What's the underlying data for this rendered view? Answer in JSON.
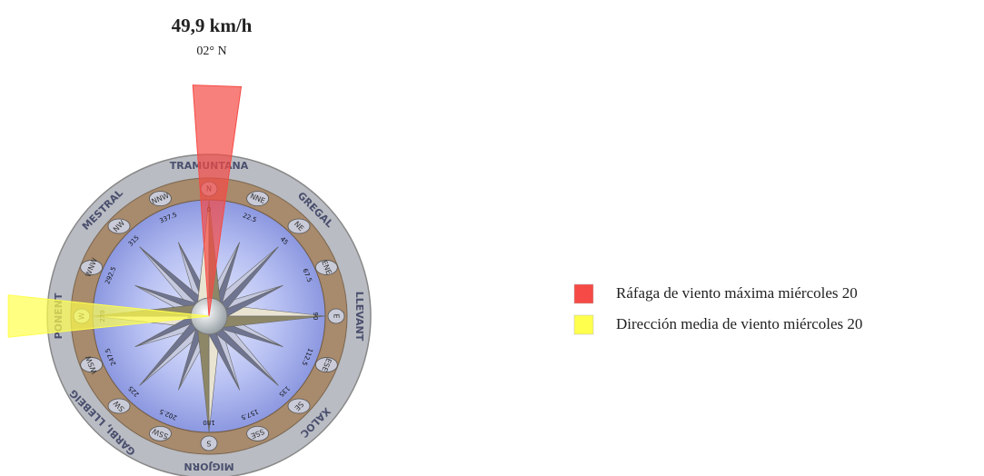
{
  "chart_data": {
    "type": "compass",
    "title": "49,9 km/h",
    "subtitle": "02° N",
    "sectors": [
      {
        "name": "TRAMUNTANA",
        "degrees": 0
      },
      {
        "name": "GREGAL",
        "degrees": 45
      },
      {
        "name": "LLEVANT",
        "degrees": 90
      },
      {
        "name": "XALOC",
        "degrees": 135
      },
      {
        "name": "MIGJORN",
        "degrees": 180
      },
      {
        "name": "GARBI, LLEBEIG",
        "degrees": 225
      },
      {
        "name": "PONENT",
        "degrees": 270
      },
      {
        "name": "MESTRAL",
        "degrees": 315
      }
    ],
    "points": [
      {
        "label": "N",
        "degrees": 0
      },
      {
        "label": "NNE",
        "degrees": 22.5
      },
      {
        "label": "NE",
        "degrees": 45
      },
      {
        "label": "ENE",
        "degrees": 67.5
      },
      {
        "label": "E",
        "degrees": 90
      },
      {
        "label": "ESE",
        "degrees": 112.5
      },
      {
        "label": "SE",
        "degrees": 135
      },
      {
        "label": "SSE",
        "degrees": 157.5
      },
      {
        "label": "S",
        "degrees": 180
      },
      {
        "label": "SSW",
        "degrees": 202.5
      },
      {
        "label": "SW",
        "degrees": 225
      },
      {
        "label": "WSW",
        "degrees": 247.5
      },
      {
        "label": "W",
        "degrees": 270
      },
      {
        "label": "WNW",
        "degrees": 292.5
      },
      {
        "label": "NW",
        "degrees": 315
      },
      {
        "label": "NNW",
        "degrees": 337.5
      }
    ],
    "series": [
      {
        "name": "Ráfaga de viento máxima miércoles 20",
        "color": "#f54a45",
        "direction": 2
      },
      {
        "name": "Dirección media de viento miércoles 20",
        "color": "#ffff4d",
        "direction": 270
      }
    ]
  }
}
